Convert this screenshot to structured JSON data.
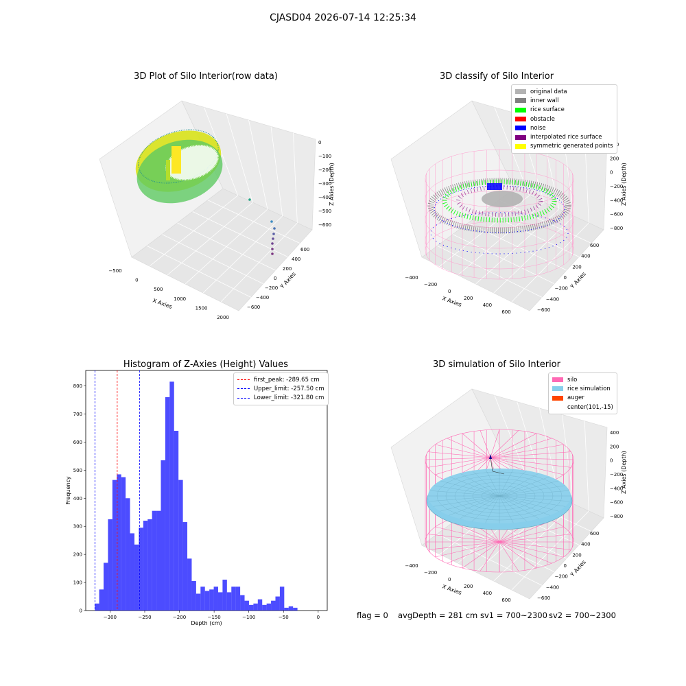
{
  "figure": {
    "suptitle": "CJASD04 2026-07-14 12:25:34"
  },
  "panels": {
    "raw": {
      "title": "3D Plot of Silo Interior(row data)",
      "xlabel": "X Axies",
      "ylabel": "Y Axies",
      "zlabel": "Z Axies (Depth)",
      "x_ticks": [
        "−500",
        "0",
        "500",
        "1000",
        "1500",
        "2000"
      ],
      "y_ticks": [
        "−600",
        "−400",
        "−200",
        "0",
        "200",
        "400",
        "600"
      ],
      "z_ticks": [
        "−600",
        "−500",
        "−400",
        "−300",
        "−200",
        "−100",
        "0"
      ]
    },
    "classify": {
      "title": "3D classify of Silo Interior",
      "xlabel": "X Axies",
      "ylabel": "Y Axies",
      "zlabel": "Z Axies (Depth)",
      "x_ticks": [
        "−400",
        "−200",
        "0",
        "200",
        "400",
        "600"
      ],
      "y_ticks": [
        "−600",
        "−400",
        "−200",
        "0",
        "200",
        "400",
        "600"
      ],
      "z_ticks": [
        "−800",
        "−600",
        "−400",
        "−200",
        "0",
        "200",
        "400"
      ],
      "legend": [
        {
          "label": "original data",
          "color": "#b3b3b3"
        },
        {
          "label": "inner wall",
          "color": "#808080"
        },
        {
          "label": "rice surface",
          "color": "#00ff00"
        },
        {
          "label": "obstacle",
          "color": "#ff0000"
        },
        {
          "label": "noise",
          "color": "#0000ff"
        },
        {
          "label": "interpolated rice surface",
          "color": "#800080"
        },
        {
          "label": "symmetric generated points",
          "color": "#ffff00"
        }
      ]
    },
    "simulation": {
      "title": "3D simulation of Silo Interior",
      "xlabel": "X Axies",
      "ylabel": "Y Axies",
      "zlabel": "Z Axies (Depth)",
      "x_ticks": [
        "−400",
        "−200",
        "0",
        "200",
        "400",
        "600"
      ],
      "y_ticks": [
        "−600",
        "−400",
        "−200",
        "0",
        "200",
        "400",
        "600"
      ],
      "z_ticks": [
        "−800",
        "−600",
        "−400",
        "−200",
        "0",
        "200",
        "400"
      ],
      "legend": [
        {
          "label": "silo",
          "color": "#ff69b4"
        },
        {
          "label": "rice simulation",
          "color": "#87ceeb"
        },
        {
          "label": "auger",
          "color": "#ff4500"
        },
        {
          "label": "center(101,-15)",
          "color": ""
        }
      ]
    }
  },
  "chart_data": {
    "type": "bar",
    "title": "Histogram of Z-Axies (Height) Values",
    "xlabel": "Depth (cm)",
    "ylabel": "Frequency",
    "xlim": [
      -335,
      13
    ],
    "ylim": [
      0,
      855
    ],
    "x_ticks": [
      -300,
      -250,
      -200,
      -150,
      -100,
      -50,
      0
    ],
    "y_ticks": [
      0,
      100,
      200,
      300,
      400,
      500,
      600,
      700,
      800
    ],
    "bin_start": -322,
    "bin_width": 6.35,
    "values": [
      25,
      75,
      170,
      325,
      465,
      485,
      475,
      400,
      275,
      235,
      295,
      320,
      325,
      355,
      355,
      535,
      760,
      815,
      640,
      465,
      315,
      185,
      105,
      60,
      85,
      70,
      75,
      85,
      65,
      110,
      65,
      85,
      85,
      55,
      35,
      20,
      25,
      40,
      20,
      25,
      35,
      50,
      85,
      10,
      15,
      10
    ],
    "bar_color": "#0000ff",
    "bar_alpha": 0.7,
    "reference_lines": [
      {
        "label": "first_peak: -289.65 cm",
        "x": -289.65,
        "color": "#ff0000"
      },
      {
        "label": "Upper_limit: -257.50 cm",
        "x": -257.5,
        "color": "#0000ff"
      },
      {
        "label": "Lower_limit: -321.80 cm",
        "x": -321.8,
        "color": "#0000ff"
      }
    ],
    "legend_position": "upper right",
    "grid": false
  },
  "footer": {
    "flag": "flag = 0",
    "avg_depth": "avgDepth = 281 cm",
    "sv1": "sv1 = 700~2300",
    "sv2": "sv2 = 700~2300"
  }
}
